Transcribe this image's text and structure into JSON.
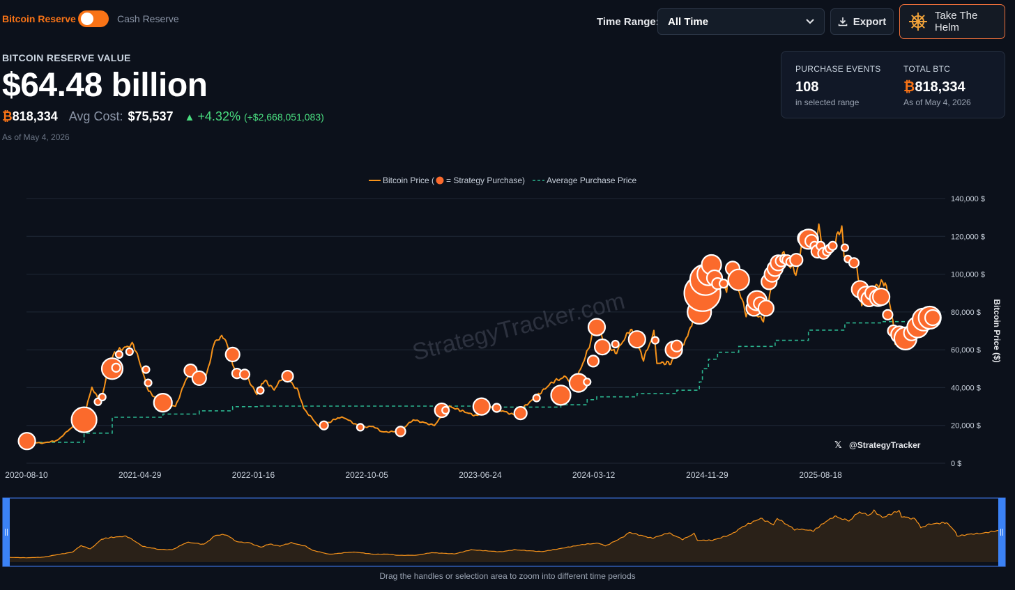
{
  "header": {
    "toggle_left": "Bitcoin Reserve",
    "toggle_right": "Cash Reserve",
    "time_range_label": "Time Range:",
    "time_range_value": "All Time",
    "export_label": "Export",
    "helm_label": "Take The Helm"
  },
  "summary": {
    "title": "BITCOIN RESERVE VALUE",
    "value": "$64.48 billion",
    "btc_symbol": "₿",
    "btc_amount": "818,334",
    "avg_cost_label": "Avg Cost:",
    "avg_cost": "$75,537",
    "change_pct": "+4.32%",
    "change_abs": "(+$2,668,051,083)",
    "as_of": "As of May 4, 2026"
  },
  "stats_card": {
    "purchase_events_label": "PURCHASE EVENTS",
    "purchase_events_value": "108",
    "purchase_events_sub": "in selected range",
    "total_btc_label": "TOTAL BTC",
    "total_btc_symbol": "₿",
    "total_btc_value": "818,334",
    "total_btc_sub": "As of May 4, 2026"
  },
  "watermark": "StrategyTracker.com",
  "handle": "@StrategyTracker",
  "navigator_hint": "Drag the handles or selection area to zoom into different time periods",
  "colors": {
    "price_line": "#f7931a",
    "purchase_dot": "#fb6a2c",
    "avg_line": "#2bb58f",
    "accent": "#f97316",
    "positive": "#4ade80"
  },
  "chart_data": {
    "type": "line",
    "legend": {
      "price_prefix": "Bitcoin Price (",
      "price_suffix": " = Strategy Purchase)",
      "avg": "Average Purchase Price"
    },
    "ylabel": "Bitcoin Price ($)",
    "ylim": [
      0,
      140000
    ],
    "y_ticks": [
      "0 $",
      "20,000 $",
      "40,000 $",
      "60,000 $",
      "80,000 $",
      "100,000 $",
      "120,000 $",
      "140,000 $"
    ],
    "x_ticks": [
      "2020-08-10",
      "2021-04-29",
      "2022-01-16",
      "2022-10-05",
      "2023-06-24",
      "2024-03-12",
      "2024-11-29",
      "2025-08-18"
    ],
    "x_range": [
      "2020-08-10",
      "2026-05-04"
    ],
    "series": [
      {
        "name": "Bitcoin Price",
        "points": [
          [
            "2020-08-10",
            11500
          ],
          [
            "2020-09-15",
            10600
          ],
          [
            "2020-10-20",
            12000
          ],
          [
            "2020-11-20",
            18500
          ],
          [
            "2020-12-20",
            24000
          ],
          [
            "2021-01-08",
            40000
          ],
          [
            "2021-01-28",
            32000
          ],
          [
            "2021-02-21",
            56000
          ],
          [
            "2021-03-13",
            60000
          ],
          [
            "2021-04-14",
            63000
          ],
          [
            "2021-04-29",
            53000
          ],
          [
            "2021-05-19",
            38000
          ],
          [
            "2021-06-22",
            31000
          ],
          [
            "2021-07-20",
            30000
          ],
          [
            "2021-08-20",
            48000
          ],
          [
            "2021-09-07",
            46000
          ],
          [
            "2021-09-25",
            43000
          ],
          [
            "2021-10-20",
            65000
          ],
          [
            "2021-11-10",
            67000
          ],
          [
            "2021-12-05",
            49000
          ],
          [
            "2021-12-30",
            47000
          ],
          [
            "2022-01-24",
            36000
          ],
          [
            "2022-02-10",
            44000
          ],
          [
            "2022-03-05",
            39000
          ],
          [
            "2022-03-29",
            47000
          ],
          [
            "2022-04-30",
            38000
          ],
          [
            "2022-05-12",
            29000
          ],
          [
            "2022-06-18",
            19000
          ],
          [
            "2022-07-30",
            24000
          ],
          [
            "2022-08-15",
            24000
          ],
          [
            "2022-09-20",
            19000
          ],
          [
            "2022-10-20",
            19500
          ],
          [
            "2022-11-10",
            16500
          ],
          [
            "2022-12-20",
            16800
          ],
          [
            "2023-01-20",
            23000
          ],
          [
            "2023-03-10",
            20000
          ],
          [
            "2023-04-14",
            30000
          ],
          [
            "2023-06-15",
            25000
          ],
          [
            "2023-07-15",
            30000
          ],
          [
            "2023-09-11",
            25500
          ],
          [
            "2023-10-25",
            34000
          ],
          [
            "2023-12-08",
            43000
          ],
          [
            "2024-01-10",
            46000
          ],
          [
            "2024-01-23",
            39000
          ],
          [
            "2024-02-28",
            60000
          ],
          [
            "2024-03-14",
            72000
          ],
          [
            "2024-05-01",
            58000
          ],
          [
            "2024-06-05",
            71000
          ],
          [
            "2024-07-05",
            55000
          ],
          [
            "2024-07-29",
            69000
          ],
          [
            "2024-08-05",
            53000
          ],
          [
            "2024-09-06",
            53000
          ],
          [
            "2024-10-15",
            67000
          ],
          [
            "2024-11-12",
            88000
          ],
          [
            "2024-12-17",
            106000
          ],
          [
            "2025-01-13",
            91000
          ],
          [
            "2025-01-21",
            106000
          ],
          [
            "2025-02-27",
            79000
          ],
          [
            "2025-03-10",
            80000
          ],
          [
            "2025-04-08",
            76000
          ],
          [
            "2025-05-01",
            96000
          ],
          [
            "2025-05-22",
            111000
          ],
          [
            "2025-06-22",
            100000
          ],
          [
            "2025-07-14",
            122000
          ],
          [
            "2025-08-02",
            113000
          ],
          [
            "2025-08-14",
            124000
          ],
          [
            "2025-09-01",
            108000
          ],
          [
            "2025-10-06",
            125000
          ],
          [
            "2025-10-11",
            111000
          ],
          [
            "2025-11-10",
            104000
          ],
          [
            "2025-11-21",
            84000
          ],
          [
            "2025-12-10",
            92000
          ],
          [
            "2026-01-14",
            96000
          ],
          [
            "2026-02-01",
            76000
          ],
          [
            "2026-02-06",
            63000
          ],
          [
            "2026-03-05",
            68000
          ],
          [
            "2026-04-01",
            70000
          ],
          [
            "2026-05-04",
            77000
          ]
        ]
      },
      {
        "name": "Average Purchase Price",
        "steps": [
          [
            "2020-08-10",
            11100
          ],
          [
            "2020-12-21",
            15900
          ],
          [
            "2021-02-24",
            24300
          ],
          [
            "2021-06-21",
            26000
          ],
          [
            "2021-09-13",
            27700
          ],
          [
            "2021-11-29",
            29900
          ],
          [
            "2022-02-01",
            30200
          ],
          [
            "2023-07-01",
            29700
          ],
          [
            "2023-12-27",
            30900
          ],
          [
            "2024-02-26",
            33600
          ],
          [
            "2024-03-19",
            35100
          ],
          [
            "2024-06-20",
            36800
          ],
          [
            "2024-09-20",
            38600
          ],
          [
            "2024-11-11",
            43000
          ],
          [
            "2024-11-18",
            50000
          ],
          [
            "2024-12-02",
            55000
          ],
          [
            "2024-12-23",
            58700
          ],
          [
            "2025-02-10",
            61800
          ],
          [
            "2025-05-05",
            65000
          ],
          [
            "2025-07-21",
            70400
          ],
          [
            "2025-10-13",
            74200
          ],
          [
            "2026-01-05",
            74900
          ],
          [
            "2026-05-04",
            75537
          ]
        ]
      },
      {
        "name": "Strategy Purchase",
        "purchases": [
          [
            "2020-08-11",
            11700,
            12
          ],
          [
            "2020-12-21",
            23000,
            18
          ],
          [
            "2021-01-22",
            32500,
            5
          ],
          [
            "2021-02-01",
            35000,
            5
          ],
          [
            "2021-02-24",
            50000,
            15
          ],
          [
            "2021-03-05",
            50500,
            6
          ],
          [
            "2021-03-12",
            57500,
            5
          ],
          [
            "2021-04-05",
            59000,
            5
          ],
          [
            "2021-05-13",
            49500,
            5
          ],
          [
            "2021-05-18",
            42500,
            5
          ],
          [
            "2021-06-21",
            32000,
            13
          ],
          [
            "2021-08-24",
            49000,
            9
          ],
          [
            "2021-09-13",
            45000,
            10
          ],
          [
            "2021-11-29",
            57500,
            10
          ],
          [
            "2021-12-09",
            47500,
            7
          ],
          [
            "2021-12-27",
            47000,
            7
          ],
          [
            "2022-02-01",
            38500,
            5
          ],
          [
            "2022-04-05",
            46000,
            8
          ],
          [
            "2022-06-28",
            20000,
            6
          ],
          [
            "2022-09-20",
            19000,
            5
          ],
          [
            "2022-12-22",
            16800,
            7
          ],
          [
            "2023-03-27",
            28000,
            10
          ],
          [
            "2023-04-05",
            28000,
            5
          ],
          [
            "2023-06-27",
            30000,
            12
          ],
          [
            "2023-08-01",
            29300,
            6
          ],
          [
            "2023-09-25",
            26500,
            9
          ],
          [
            "2023-11-01",
            34500,
            5
          ],
          [
            "2023-12-27",
            36000,
            14
          ],
          [
            "2024-02-06",
            42500,
            13
          ],
          [
            "2024-02-26",
            43000,
            5
          ],
          [
            "2024-03-11",
            54000,
            8
          ],
          [
            "2024-03-19",
            72000,
            12
          ],
          [
            "2024-04-01",
            61500,
            11
          ],
          [
            "2024-05-01",
            63000,
            5
          ],
          [
            "2024-06-20",
            65500,
            12
          ],
          [
            "2024-08-01",
            65000,
            5
          ],
          [
            "2024-09-13",
            60000,
            12
          ],
          [
            "2024-09-20",
            62000,
            8
          ],
          [
            "2024-11-11",
            80000,
            17
          ],
          [
            "2024-11-18",
            90000,
            26
          ],
          [
            "2024-11-25",
            97000,
            22
          ],
          [
            "2024-12-02",
            100000,
            16
          ],
          [
            "2024-12-09",
            105000,
            14
          ],
          [
            "2024-12-16",
            98000,
            11
          ],
          [
            "2024-12-23",
            95000,
            8
          ],
          [
            "2025-01-06",
            95000,
            6
          ],
          [
            "2025-01-27",
            103000,
            10
          ],
          [
            "2025-02-10",
            97000,
            15
          ],
          [
            "2025-03-17",
            82000,
            11
          ],
          [
            "2025-03-24",
            86000,
            14
          ],
          [
            "2025-03-31",
            84500,
            9
          ],
          [
            "2025-04-14",
            82000,
            11
          ],
          [
            "2025-04-21",
            96000,
            11
          ],
          [
            "2025-04-28",
            100000,
            11
          ],
          [
            "2025-05-05",
            103000,
            11
          ],
          [
            "2025-05-12",
            106000,
            11
          ],
          [
            "2025-05-19",
            107000,
            8
          ],
          [
            "2025-05-26",
            108000,
            6
          ],
          [
            "2025-06-02",
            107500,
            7
          ],
          [
            "2025-06-09",
            106500,
            6
          ],
          [
            "2025-06-23",
            107500,
            9
          ],
          [
            "2025-07-14",
            119000,
            11
          ],
          [
            "2025-07-21",
            118500,
            14
          ],
          [
            "2025-07-28",
            117500,
            9
          ],
          [
            "2025-08-04",
            115000,
            6
          ],
          [
            "2025-08-11",
            112000,
            9
          ],
          [
            "2025-08-18",
            115000,
            6
          ],
          [
            "2025-08-25",
            111000,
            8
          ],
          [
            "2025-09-02",
            112000,
            6
          ],
          [
            "2025-09-08",
            113500,
            6
          ],
          [
            "2025-09-15",
            115000,
            6
          ],
          [
            "2025-10-13",
            114000,
            5
          ],
          [
            "2025-10-20",
            108000,
            5
          ],
          [
            "2025-11-03",
            106000,
            7
          ],
          [
            "2025-11-17",
            92000,
            12
          ],
          [
            "2025-12-01",
            89000,
            12
          ],
          [
            "2025-12-08",
            87000,
            11
          ],
          [
            "2025-12-15",
            90000,
            10
          ],
          [
            "2025-12-29",
            87500,
            12
          ],
          [
            "2026-01-05",
            88000,
            12
          ],
          [
            "2026-01-20",
            78500,
            7
          ],
          [
            "2026-02-02",
            70000,
            8
          ],
          [
            "2026-02-16",
            68000,
            12
          ],
          [
            "2026-03-02",
            66000,
            16
          ],
          [
            "2026-03-16",
            69000,
            11
          ],
          [
            "2026-03-30",
            72000,
            15
          ],
          [
            "2026-04-13",
            76000,
            16
          ],
          [
            "2026-04-27",
            77000,
            16
          ],
          [
            "2026-05-04",
            77000,
            11
          ]
        ]
      }
    ]
  }
}
